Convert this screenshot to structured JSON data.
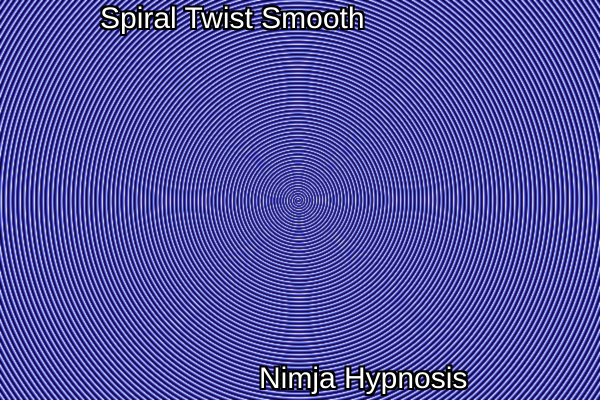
{
  "title": "Spiral Twist Smooth",
  "brand": "Nimja Hypnosis",
  "spiral": {
    "colors": {
      "white": "#ffffff",
      "light": "#b8d4ff",
      "blue": "#3a3ad6",
      "deep": "#1a0a6a",
      "black": "#05010f"
    }
  }
}
